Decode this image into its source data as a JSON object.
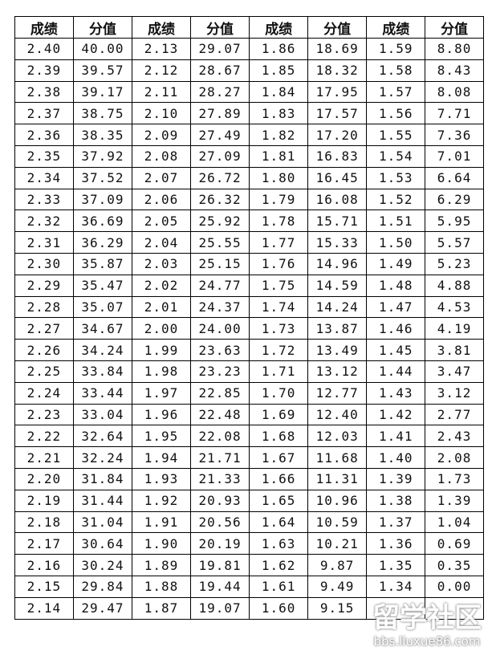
{
  "headers": [
    "成绩",
    "分值",
    "成绩",
    "分值",
    "成绩",
    "分值",
    "成绩",
    "分值"
  ],
  "rows": [
    [
      "2.40",
      "40.00",
      "2.13",
      "29.07",
      "1.86",
      "18.69",
      "1.59",
      "8.80"
    ],
    [
      "2.39",
      "39.57",
      "2.12",
      "28.67",
      "1.85",
      "18.32",
      "1.58",
      "8.43"
    ],
    [
      "2.38",
      "39.17",
      "2.11",
      "28.27",
      "1.84",
      "17.95",
      "1.57",
      "8.08"
    ],
    [
      "2.37",
      "38.75",
      "2.10",
      "27.89",
      "1.83",
      "17.57",
      "1.56",
      "7.71"
    ],
    [
      "2.36",
      "38.35",
      "2.09",
      "27.49",
      "1.82",
      "17.20",
      "1.55",
      "7.36"
    ],
    [
      "2.35",
      "37.92",
      "2.08",
      "27.09",
      "1.81",
      "16.83",
      "1.54",
      "7.01"
    ],
    [
      "2.34",
      "37.52",
      "2.07",
      "26.72",
      "1.80",
      "16.45",
      "1.53",
      "6.64"
    ],
    [
      "2.33",
      "37.09",
      "2.06",
      "26.32",
      "1.79",
      "16.08",
      "1.52",
      "6.29"
    ],
    [
      "2.32",
      "36.69",
      "2.05",
      "25.92",
      "1.78",
      "15.71",
      "1.51",
      "5.95"
    ],
    [
      "2.31",
      "36.29",
      "2.04",
      "25.55",
      "1.77",
      "15.33",
      "1.50",
      "5.57"
    ],
    [
      "2.30",
      "35.87",
      "2.03",
      "25.15",
      "1.76",
      "14.96",
      "1.49",
      "5.23"
    ],
    [
      "2.29",
      "35.47",
      "2.02",
      "24.77",
      "1.75",
      "14.59",
      "1.48",
      "4.88"
    ],
    [
      "2.28",
      "35.07",
      "2.01",
      "24.37",
      "1.74",
      "14.24",
      "1.47",
      "4.53"
    ],
    [
      "2.27",
      "34.67",
      "2.00",
      "24.00",
      "1.73",
      "13.87",
      "1.46",
      "4.19"
    ],
    [
      "2.26",
      "34.24",
      "1.99",
      "23.63",
      "1.72",
      "13.49",
      "1.45",
      "3.81"
    ],
    [
      "2.25",
      "33.84",
      "1.98",
      "23.23",
      "1.71",
      "13.12",
      "1.44",
      "3.47"
    ],
    [
      "2.24",
      "33.44",
      "1.97",
      "22.85",
      "1.70",
      "12.77",
      "1.43",
      "3.12"
    ],
    [
      "2.23",
      "33.04",
      "1.96",
      "22.48",
      "1.69",
      "12.40",
      "1.42",
      "2.77"
    ],
    [
      "2.22",
      "32.64",
      "1.95",
      "22.08",
      "1.68",
      "12.03",
      "1.41",
      "2.43"
    ],
    [
      "2.21",
      "32.24",
      "1.94",
      "21.71",
      "1.67",
      "11.68",
      "1.40",
      "2.08"
    ],
    [
      "2.20",
      "31.84",
      "1.93",
      "21.33",
      "1.66",
      "11.31",
      "1.39",
      "1.73"
    ],
    [
      "2.19",
      "31.44",
      "1.92",
      "20.93",
      "1.65",
      "10.96",
      "1.38",
      "1.39"
    ],
    [
      "2.18",
      "31.04",
      "1.91",
      "20.56",
      "1.64",
      "10.59",
      "1.37",
      "1.04"
    ],
    [
      "2.17",
      "30.64",
      "1.90",
      "20.19",
      "1.63",
      "10.21",
      "1.36",
      "0.69"
    ],
    [
      "2.16",
      "30.24",
      "1.89",
      "19.81",
      "1.62",
      "9.87",
      "1.35",
      "0.35"
    ],
    [
      "2.15",
      "29.84",
      "1.88",
      "19.44",
      "1.61",
      "9.49",
      "1.34",
      "0.00"
    ],
    [
      "2.14",
      "29.47",
      "1.87",
      "19.07",
      "1.60",
      "9.15",
      "",
      ""
    ]
  ],
  "watermark": {
    "logo": "留学社区",
    "url": "bbs.liuxue86.com"
  }
}
